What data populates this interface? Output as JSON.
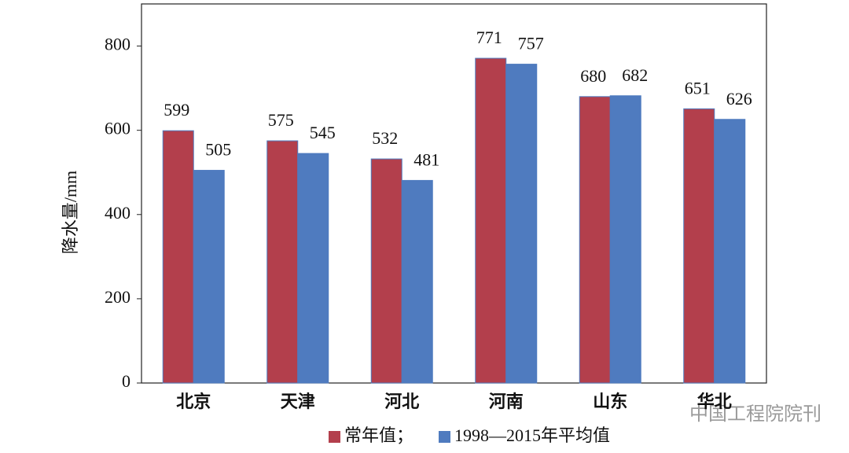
{
  "chart_data": {
    "type": "bar",
    "y_label": "降水量/mm",
    "categories": [
      "北京",
      "天津",
      "河北",
      "河南",
      "山东",
      "华北"
    ],
    "series": [
      {
        "name": "常年值；",
        "color": "#b33f4c",
        "values": [
          599,
          575,
          532,
          771,
          680,
          651
        ]
      },
      {
        "name": "1998—2015年平均值",
        "color": "#4f7bbf",
        "values": [
          505,
          545,
          481,
          757,
          682,
          626
        ]
      }
    ],
    "ylim": [
      0,
      900
    ],
    "yticks": [
      0,
      200,
      400,
      600,
      800
    ],
    "legend": "bottom",
    "watermark": "中国工程院院刊"
  }
}
